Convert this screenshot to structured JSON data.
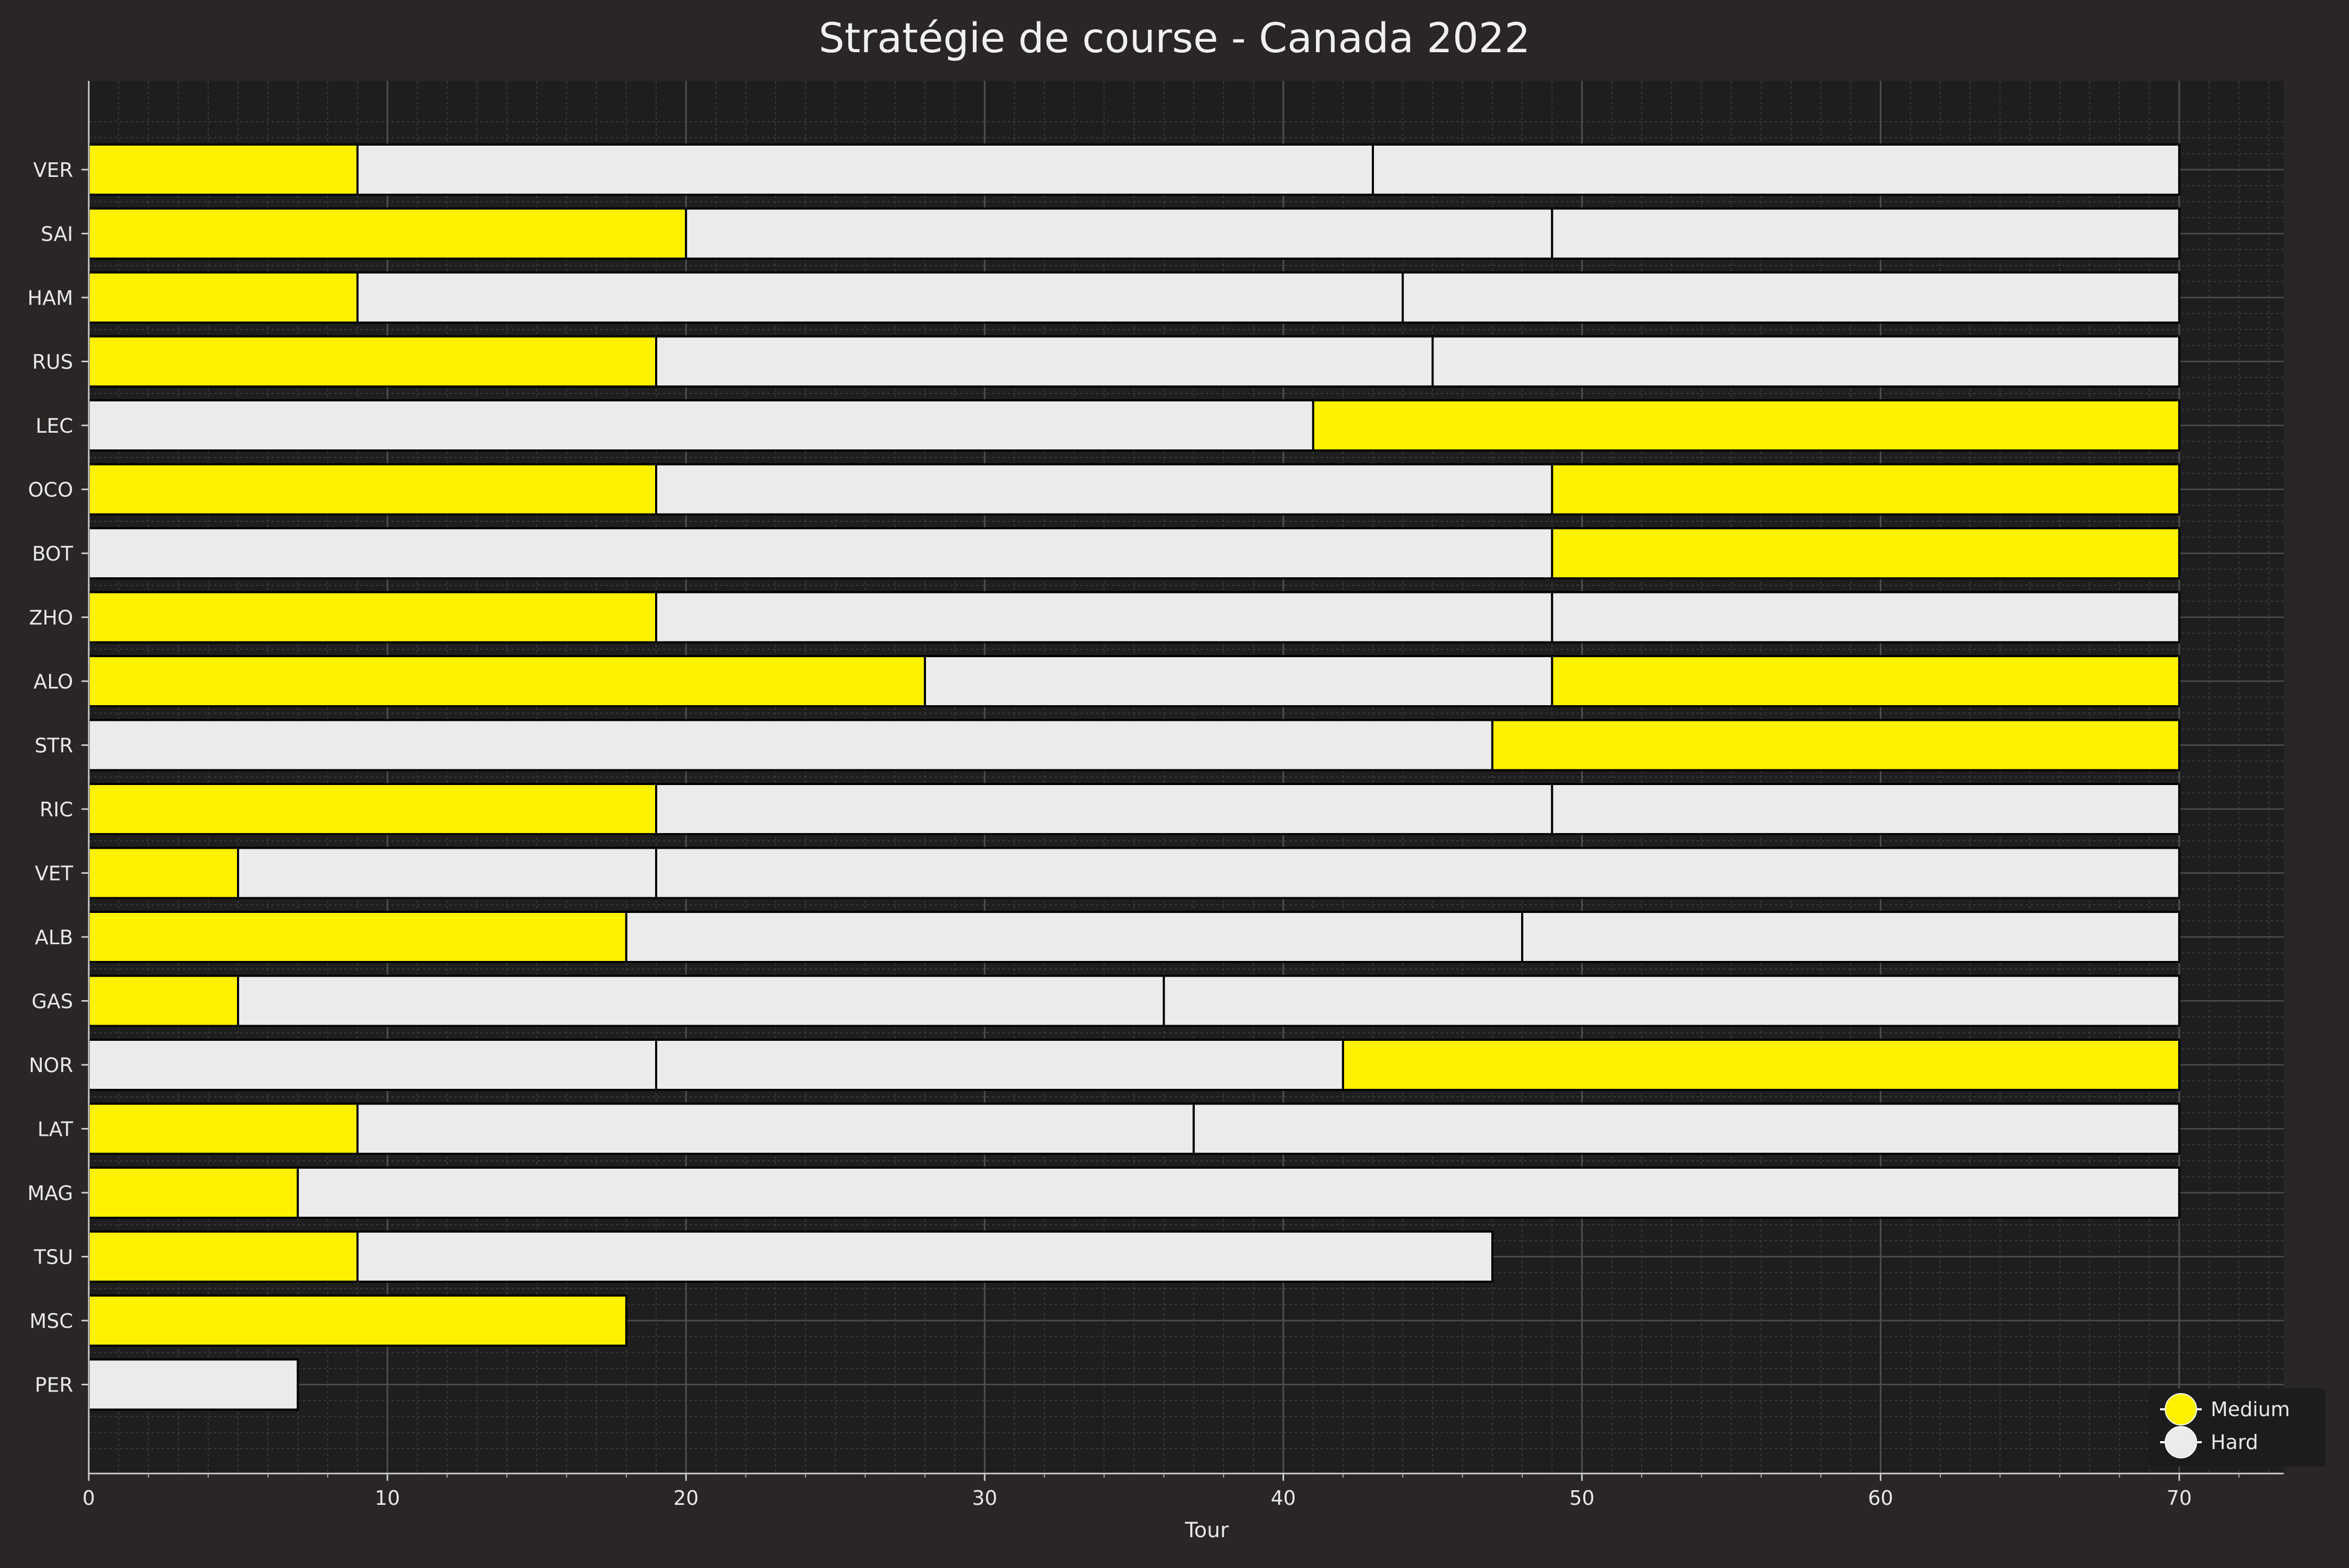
{
  "chart_data": {
    "type": "bar",
    "orientation": "horizontal-stacked",
    "title": "Stratégie de course - Canada 2022",
    "xlabel": "Tour",
    "ylabel": "",
    "xlim": [
      0,
      73.5
    ],
    "xticks": [
      0,
      10,
      20,
      30,
      40,
      50,
      60,
      70
    ],
    "grid": "on",
    "legend_position": "bottom-right",
    "compounds": [
      {
        "name": "Medium",
        "color": "#fff200"
      },
      {
        "name": "Hard",
        "color": "#ebebeb"
      }
    ],
    "drivers": [
      {
        "driver": "VER",
        "stints": [
          {
            "compound": "Medium",
            "start": 0,
            "end": 9
          },
          {
            "compound": "Hard",
            "start": 9,
            "end": 43
          },
          {
            "compound": "Hard",
            "start": 43,
            "end": 70
          }
        ]
      },
      {
        "driver": "SAI",
        "stints": [
          {
            "compound": "Medium",
            "start": 0,
            "end": 20
          },
          {
            "compound": "Hard",
            "start": 20,
            "end": 49
          },
          {
            "compound": "Hard",
            "start": 49,
            "end": 70
          }
        ]
      },
      {
        "driver": "HAM",
        "stints": [
          {
            "compound": "Medium",
            "start": 0,
            "end": 9
          },
          {
            "compound": "Hard",
            "start": 9,
            "end": 44
          },
          {
            "compound": "Hard",
            "start": 44,
            "end": 70
          }
        ]
      },
      {
        "driver": "RUS",
        "stints": [
          {
            "compound": "Medium",
            "start": 0,
            "end": 19
          },
          {
            "compound": "Hard",
            "start": 19,
            "end": 45
          },
          {
            "compound": "Hard",
            "start": 45,
            "end": 70
          }
        ]
      },
      {
        "driver": "LEC",
        "stints": [
          {
            "compound": "Hard",
            "start": 0,
            "end": 41
          },
          {
            "compound": "Medium",
            "start": 41,
            "end": 70
          }
        ]
      },
      {
        "driver": "OCO",
        "stints": [
          {
            "compound": "Medium",
            "start": 0,
            "end": 19
          },
          {
            "compound": "Hard",
            "start": 19,
            "end": 49
          },
          {
            "compound": "Medium",
            "start": 49,
            "end": 70
          }
        ]
      },
      {
        "driver": "BOT",
        "stints": [
          {
            "compound": "Hard",
            "start": 0,
            "end": 49
          },
          {
            "compound": "Medium",
            "start": 49,
            "end": 70
          }
        ]
      },
      {
        "driver": "ZHO",
        "stints": [
          {
            "compound": "Medium",
            "start": 0,
            "end": 19
          },
          {
            "compound": "Hard",
            "start": 19,
            "end": 49
          },
          {
            "compound": "Hard",
            "start": 49,
            "end": 70
          }
        ]
      },
      {
        "driver": "ALO",
        "stints": [
          {
            "compound": "Medium",
            "start": 0,
            "end": 28
          },
          {
            "compound": "Hard",
            "start": 28,
            "end": 49
          },
          {
            "compound": "Medium",
            "start": 49,
            "end": 70
          }
        ]
      },
      {
        "driver": "STR",
        "stints": [
          {
            "compound": "Hard",
            "start": 0,
            "end": 47
          },
          {
            "compound": "Medium",
            "start": 47,
            "end": 70
          }
        ]
      },
      {
        "driver": "RIC",
        "stints": [
          {
            "compound": "Medium",
            "start": 0,
            "end": 19
          },
          {
            "compound": "Hard",
            "start": 19,
            "end": 49
          },
          {
            "compound": "Hard",
            "start": 49,
            "end": 70
          }
        ]
      },
      {
        "driver": "VET",
        "stints": [
          {
            "compound": "Medium",
            "start": 0,
            "end": 5
          },
          {
            "compound": "Hard",
            "start": 5,
            "end": 19
          },
          {
            "compound": "Hard",
            "start": 19,
            "end": 70
          }
        ]
      },
      {
        "driver": "ALB",
        "stints": [
          {
            "compound": "Medium",
            "start": 0,
            "end": 18
          },
          {
            "compound": "Hard",
            "start": 18,
            "end": 48
          },
          {
            "compound": "Hard",
            "start": 48,
            "end": 70
          }
        ]
      },
      {
        "driver": "GAS",
        "stints": [
          {
            "compound": "Medium",
            "start": 0,
            "end": 5
          },
          {
            "compound": "Hard",
            "start": 5,
            "end": 36
          },
          {
            "compound": "Hard",
            "start": 36,
            "end": 70
          }
        ]
      },
      {
        "driver": "NOR",
        "stints": [
          {
            "compound": "Hard",
            "start": 0,
            "end": 19
          },
          {
            "compound": "Hard",
            "start": 19,
            "end": 42
          },
          {
            "compound": "Medium",
            "start": 42,
            "end": 70
          }
        ]
      },
      {
        "driver": "LAT",
        "stints": [
          {
            "compound": "Medium",
            "start": 0,
            "end": 9
          },
          {
            "compound": "Hard",
            "start": 9,
            "end": 37
          },
          {
            "compound": "Hard",
            "start": 37,
            "end": 70
          }
        ]
      },
      {
        "driver": "MAG",
        "stints": [
          {
            "compound": "Medium",
            "start": 0,
            "end": 7
          },
          {
            "compound": "Hard",
            "start": 7,
            "end": 70
          }
        ]
      },
      {
        "driver": "TSU",
        "stints": [
          {
            "compound": "Medium",
            "start": 0,
            "end": 9
          },
          {
            "compound": "Hard",
            "start": 9,
            "end": 47
          }
        ]
      },
      {
        "driver": "MSC",
        "stints": [
          {
            "compound": "Medium",
            "start": 0,
            "end": 18
          }
        ]
      },
      {
        "driver": "PER",
        "stints": [
          {
            "compound": "Hard",
            "start": 0,
            "end": 7
          }
        ]
      }
    ]
  }
}
